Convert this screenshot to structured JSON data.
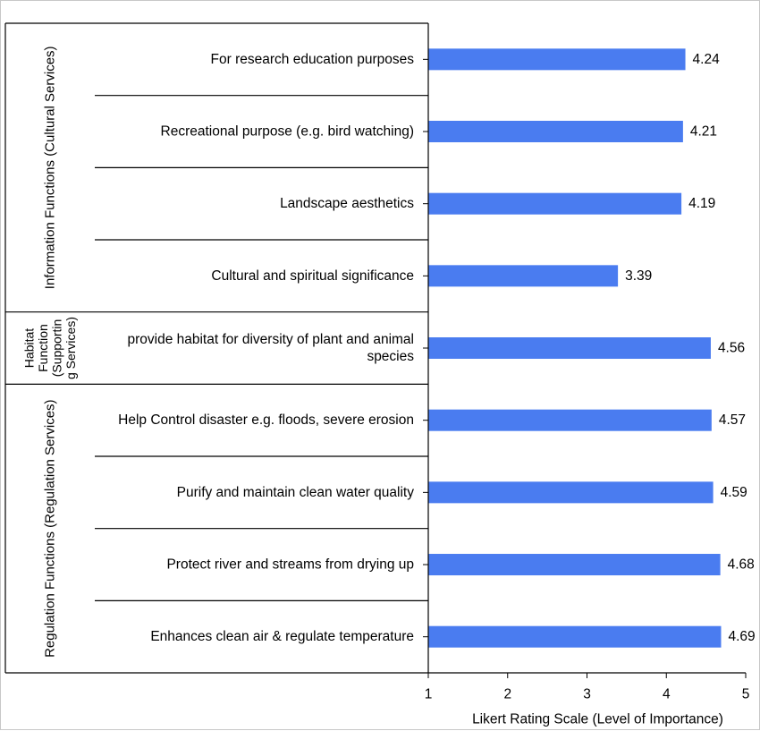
{
  "chart_data": {
    "type": "bar",
    "orientation": "horizontal",
    "xlabel": "Likert Rating Scale (Level of Importance)",
    "xlim": [
      1,
      5
    ],
    "xticks": [
      1,
      2,
      3,
      4,
      5
    ],
    "grid": false,
    "bar_color": "#4a7cf0",
    "groups": [
      {
        "name": "Information Functions (Cultural Services)",
        "label_lines": [
          "Information Functions (Cultural Services)"
        ],
        "items": [
          {
            "label_lines": [
              "For research education purposes"
            ],
            "value": 4.24,
            "value_label": "4.24"
          },
          {
            "label_lines": [
              "Recreational purpose (e.g. bird watching)"
            ],
            "value": 4.21,
            "value_label": "4.21"
          },
          {
            "label_lines": [
              "Landscape aesthetics"
            ],
            "value": 4.19,
            "value_label": "4.19"
          },
          {
            "label_lines": [
              "Cultural and spiritual significance"
            ],
            "value": 3.39,
            "value_label": "3.39"
          }
        ]
      },
      {
        "name": "Habitat Function (Supporting Services)",
        "label_lines": [
          "Habitat",
          "Function",
          "(Supportin",
          "g Services)"
        ],
        "items": [
          {
            "label_lines": [
              "provide habitat for diversity of plant and animal",
              "species"
            ],
            "value": 4.56,
            "value_label": "4.56"
          }
        ]
      },
      {
        "name": "Regulation Functions (Regulation Services)",
        "label_lines": [
          "Regulation Functions (Regulation Services)"
        ],
        "items": [
          {
            "label_lines": [
              "Help Control disaster e.g. floods, severe erosion"
            ],
            "value": 4.57,
            "value_label": "4.57"
          },
          {
            "label_lines": [
              "Purify and maintain clean water quality"
            ],
            "value": 4.59,
            "value_label": "4.59"
          },
          {
            "label_lines": [
              "Protect river and streams from drying up"
            ],
            "value": 4.68,
            "value_label": "4.68"
          },
          {
            "label_lines": [
              "Enhances clean air & regulate temperature"
            ],
            "value": 4.69,
            "value_label": "4.69"
          }
        ]
      }
    ]
  }
}
